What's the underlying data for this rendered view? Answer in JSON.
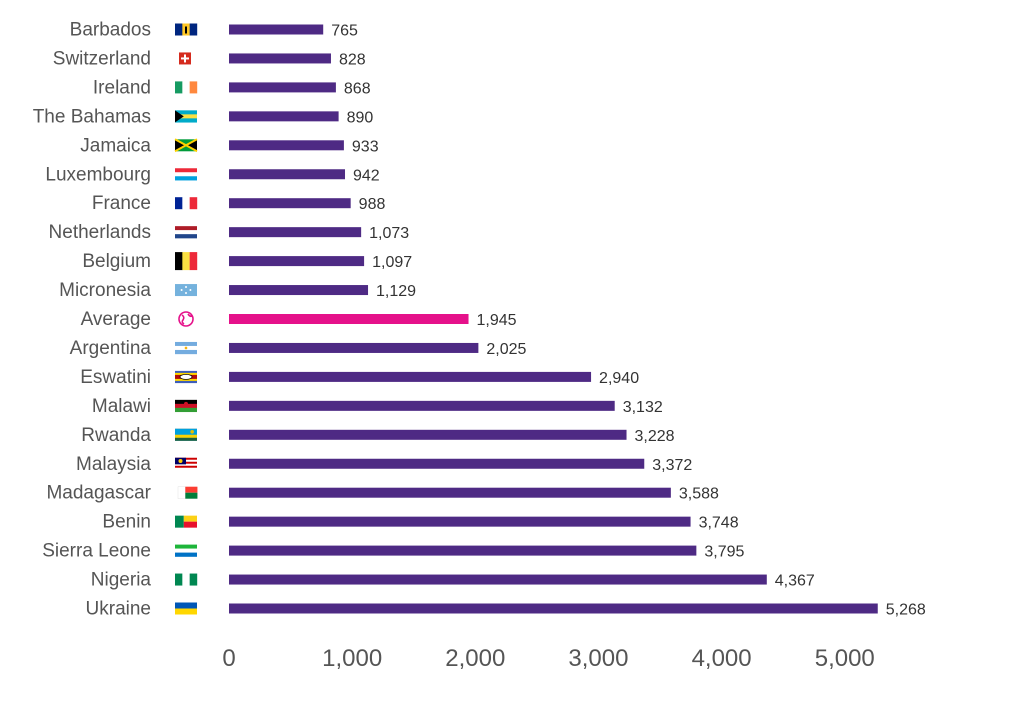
{
  "chart_data": {
    "type": "bar",
    "orientation": "horizontal",
    "categories": [
      "Barbados",
      "Switzerland",
      "Ireland",
      "The Bahamas",
      "Jamaica",
      "Luxembourg",
      "France",
      "Netherlands",
      "Belgium",
      "Micronesia",
      "Average",
      "Argentina",
      "Eswatini",
      "Malawi",
      "Rwanda",
      "Malaysia",
      "Madagascar",
      "Benin",
      "Sierra Leone",
      "Nigeria",
      "Ukraine"
    ],
    "values": [
      765,
      828,
      868,
      890,
      933,
      942,
      988,
      1073,
      1097,
      1129,
      1945,
      2025,
      2940,
      3132,
      3228,
      3372,
      3588,
      3748,
      3795,
      4367,
      5268
    ],
    "value_labels": [
      "765",
      "828",
      "868",
      "890",
      "933",
      "942",
      "988",
      "1,073",
      "1,097",
      "1,129",
      "1,945",
      "2,025",
      "2,940",
      "3,132",
      "3,228",
      "3,372",
      "3,588",
      "3,748",
      "3,795",
      "4,367",
      "5,268"
    ],
    "icons": [
      "barbados-flag-icon",
      "switzerland-flag-icon",
      "ireland-flag-icon",
      "bahamas-flag-icon",
      "jamaica-flag-icon",
      "luxembourg-flag-icon",
      "france-flag-icon",
      "netherlands-flag-icon",
      "belgium-flag-icon",
      "micronesia-flag-icon",
      "globe-icon",
      "argentina-flag-icon",
      "eswatini-flag-icon",
      "malawi-flag-icon",
      "rwanda-flag-icon",
      "malaysia-flag-icon",
      "madagascar-flag-icon",
      "benin-flag-icon",
      "sierra-leone-flag-icon",
      "nigeria-flag-icon",
      "ukraine-flag-icon"
    ],
    "xlim": [
      0,
      5500
    ],
    "xticks": [
      0,
      1000,
      2000,
      3000,
      4000,
      5000
    ],
    "xtick_labels": [
      "0",
      "1,000",
      "2,000",
      "3,000",
      "4,000",
      "5,000"
    ],
    "title": "",
    "xlabel": "",
    "ylabel": "",
    "grid": false,
    "legend": "none",
    "colors": {
      "bar": "#4e2a84",
      "highlight": "#e5118a",
      "highlight_category": "Average"
    }
  }
}
